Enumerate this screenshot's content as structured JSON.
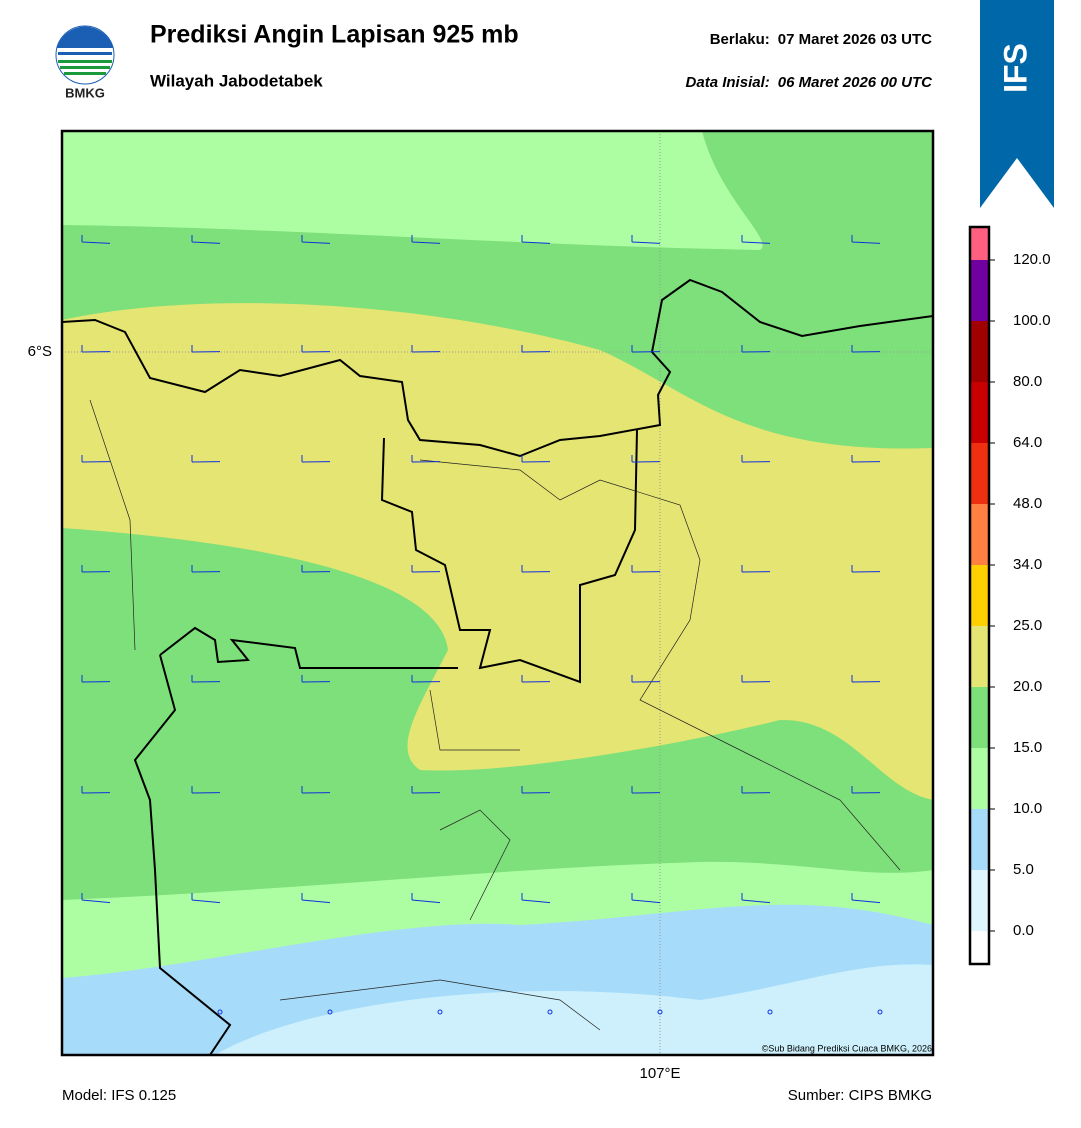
{
  "header": {
    "logo_text": "BMKG",
    "title": "Prediksi Angin Lapisan 925 mb",
    "subtitle": "Wilayah Jabodetabek",
    "valid_label": "Berlaku:",
    "valid_time": "07 Maret 2026 03 UTC",
    "init_label": "Data Inisial:",
    "init_time": "06 Maret 2026 00 UTC",
    "badge": "IFS"
  },
  "map": {
    "lat_label": "6°S",
    "lon_label": "107°E",
    "copyright": "©Sub Bidang Prediksi Cuaca BMKG, 2026"
  },
  "colorbar": {
    "ticks": [
      {
        "value": 0,
        "label": "0.0"
      },
      {
        "value": 5,
        "label": "5.0"
      },
      {
        "value": 10,
        "label": "10.0"
      },
      {
        "value": 15,
        "label": "15.0"
      },
      {
        "value": 20,
        "label": "20.0"
      },
      {
        "value": 25,
        "label": "25.0"
      },
      {
        "value": 34,
        "label": "34.0"
      },
      {
        "value": 48,
        "label": "48.0"
      },
      {
        "value": 64,
        "label": "64.0"
      },
      {
        "value": 80,
        "label": "80.0"
      },
      {
        "value": 100,
        "label": "100.0"
      },
      {
        "value": 120,
        "label": "120.0"
      }
    ],
    "colors": [
      "#ffffff",
      "#e0f6fe",
      "#a6dcfa",
      "#adfea2",
      "#7ee07a",
      "#e5e573",
      "#ffd000",
      "#ff8040",
      "#ee3010",
      "#c80000",
      "#a00000",
      "#7000a0",
      "#ff6080"
    ]
  },
  "footer": {
    "model": "Model: IFS 0.125",
    "source": "Sumber: CIPS BMKG"
  }
}
